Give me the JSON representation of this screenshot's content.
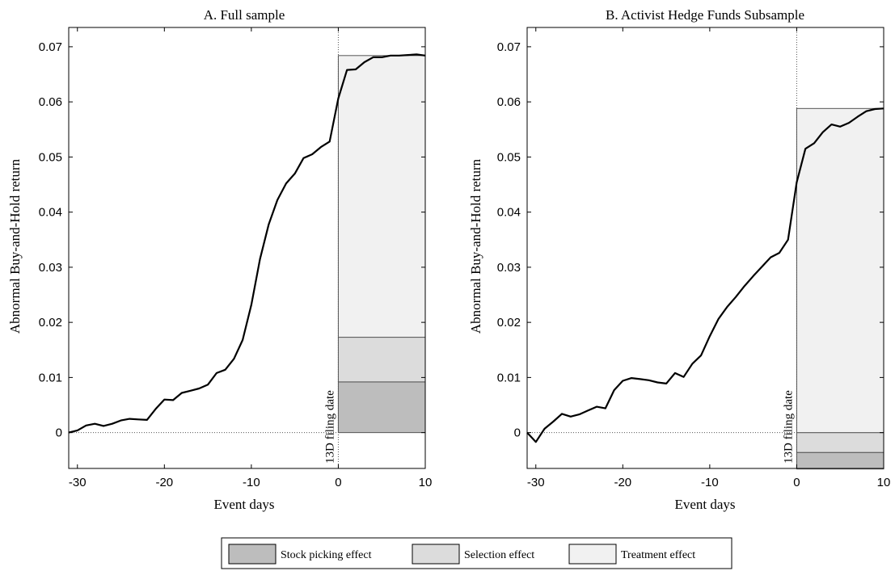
{
  "chart_data": [
    {
      "type": "line",
      "title": "A. Full sample",
      "xlabel": "Event days",
      "ylabel": "Abnormal Buy-and-Hold return",
      "xlim": [
        -31,
        10
      ],
      "ylim": [
        -0.0065,
        0.0735
      ],
      "xticks": [
        -30,
        -20,
        -10,
        0,
        10
      ],
      "yticks": [
        0,
        0.01,
        0.02,
        0.03,
        0.04,
        0.05,
        0.06,
        0.07
      ],
      "annotation": "13D filing date",
      "reference_lines": {
        "x": 0,
        "y": 0,
        "style": "dotted"
      },
      "series": [
        {
          "x": [
            -31,
            -30,
            -29,
            -28,
            -27,
            -26,
            -25,
            -24,
            -23,
            -22,
            -21,
            -20,
            -19,
            -18,
            -17,
            -16,
            -15,
            -14,
            -13,
            -12,
            -11,
            -10,
            -9,
            -8,
            -7,
            -6,
            -5,
            -4,
            -3,
            -2,
            -1,
            0,
            1,
            2,
            3,
            4,
            5,
            6,
            7,
            8,
            9,
            10
          ],
          "values": [
            0.0,
            0.0004,
            0.0013,
            0.0016,
            0.0012,
            0.0016,
            0.0022,
            0.0025,
            0.0024,
            0.0023,
            0.0043,
            0.006,
            0.0059,
            0.0072,
            0.0076,
            0.008,
            0.0087,
            0.0108,
            0.0114,
            0.0134,
            0.0168,
            0.0232,
            0.0315,
            0.0378,
            0.0422,
            0.0452,
            0.047,
            0.0498,
            0.0505,
            0.0518,
            0.0528,
            0.0606,
            0.0658,
            0.0659,
            0.0672,
            0.0681,
            0.0681,
            0.0684,
            0.0684,
            0.0685,
            0.0686,
            0.0684
          ]
        }
      ],
      "stacked_bars": {
        "x_range": [
          0,
          10
        ],
        "segments": [
          {
            "legend": "Stock picking effect",
            "from": 0,
            "to": 0.0092
          },
          {
            "legend": "Selection effect",
            "from": 0.0092,
            "to": 0.0173
          },
          {
            "legend": "Treatment effect",
            "from": 0.0173,
            "to": 0.0684
          }
        ]
      }
    },
    {
      "type": "line",
      "title": "B. Activist Hedge Funds Subsample",
      "xlabel": "Event days",
      "ylabel": "Abnormal Buy-and-Hold return",
      "xlim": [
        -31,
        10
      ],
      "ylim": [
        -0.0065,
        0.0735
      ],
      "xticks": [
        -30,
        -20,
        -10,
        0,
        10
      ],
      "yticks": [
        0,
        0.01,
        0.02,
        0.03,
        0.04,
        0.05,
        0.06,
        0.07
      ],
      "annotation": "13D filing date",
      "reference_lines": {
        "x": 0,
        "y": 0,
        "style": "dotted"
      },
      "series": [
        {
          "x": [
            -31,
            -30,
            -29,
            -28,
            -27,
            -26,
            -25,
            -24,
            -23,
            -22,
            -21,
            -20,
            -19,
            -18,
            -17,
            -16,
            -15,
            -14,
            -13,
            -12,
            -11,
            -10,
            -9,
            -8,
            -7,
            -6,
            -5,
            -4,
            -3,
            -2,
            -1,
            0,
            1,
            2,
            3,
            4,
            5,
            6,
            7,
            8,
            9,
            10
          ],
          "values": [
            0.0,
            -0.0017,
            0.0007,
            0.002,
            0.0034,
            0.0029,
            0.0033,
            0.004,
            0.0047,
            0.0044,
            0.0077,
            0.0094,
            0.0099,
            0.0097,
            0.0095,
            0.0091,
            0.0089,
            0.0108,
            0.0101,
            0.0125,
            0.014,
            0.0175,
            0.0206,
            0.0228,
            0.0246,
            0.0266,
            0.0284,
            0.0301,
            0.0318,
            0.0326,
            0.035,
            0.0454,
            0.0515,
            0.0525,
            0.0545,
            0.0559,
            0.0555,
            0.0562,
            0.0573,
            0.0583,
            0.0587,
            0.0588
          ]
        }
      ],
      "stacked_bars": {
        "x_range": [
          0,
          10
        ],
        "segments": [
          {
            "legend": "Stock picking effect",
            "from": -0.0036,
            "to": -0.0066
          },
          {
            "legend": "Selection effect",
            "from": 0,
            "to": -0.0036
          },
          {
            "legend": "Treatment effect",
            "from": 0,
            "to": 0.0588
          }
        ]
      }
    }
  ],
  "legend": {
    "position": "bottom-center",
    "items": [
      {
        "label": "Stock picking effect",
        "color": "#bdbdbd"
      },
      {
        "label": "Selection effect",
        "color": "#dcdcdc"
      },
      {
        "label": "Treatment effect",
        "color": "#f1f1f1"
      }
    ]
  },
  "colors": {
    "line": "#000000",
    "stock_picking": "#bdbdbd",
    "selection": "#dcdcdc",
    "treatment": "#f1f1f1",
    "bar_edge": "#555555"
  }
}
